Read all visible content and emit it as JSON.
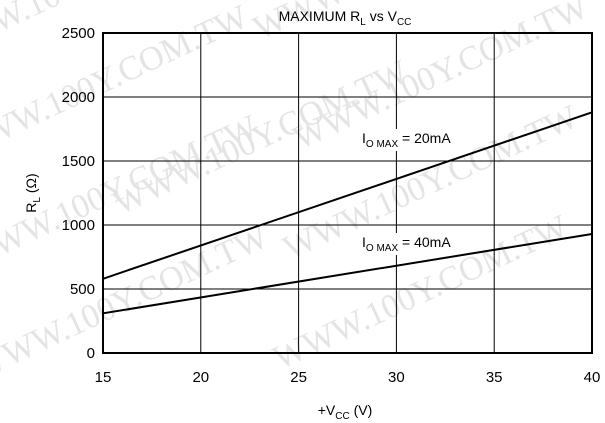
{
  "chart_data": {
    "type": "line",
    "title": {
      "main": "MAXIMUM R",
      "sub1": "L",
      "mid": " vs V",
      "sub2": "CC"
    },
    "xlabel": {
      "pre": "+V",
      "sub": "CC",
      "post": " (V)"
    },
    "ylabel": {
      "pre": "R",
      "sub": "L",
      "post": " (Ω)"
    },
    "xlim": [
      15,
      40
    ],
    "ylim": [
      0,
      2500
    ],
    "x_ticks": [
      "15",
      "20",
      "25",
      "30",
      "35",
      "40"
    ],
    "y_ticks": [
      "0",
      "500",
      "1000",
      "1500",
      "2000",
      "2500"
    ],
    "grid": true,
    "series": [
      {
        "label": {
          "pre": "I",
          "sub": "O MAX",
          "post": " = 20mA"
        },
        "x": [
          15,
          40
        ],
        "y": [
          580,
          1880
        ]
      },
      {
        "label": {
          "pre": "I",
          "sub": "O MAX",
          "post": " = 40mA"
        },
        "x": [
          15,
          40
        ],
        "y": [
          310,
          930
        ]
      }
    ]
  },
  "watermark": "WWW.100Y.COM.TW"
}
